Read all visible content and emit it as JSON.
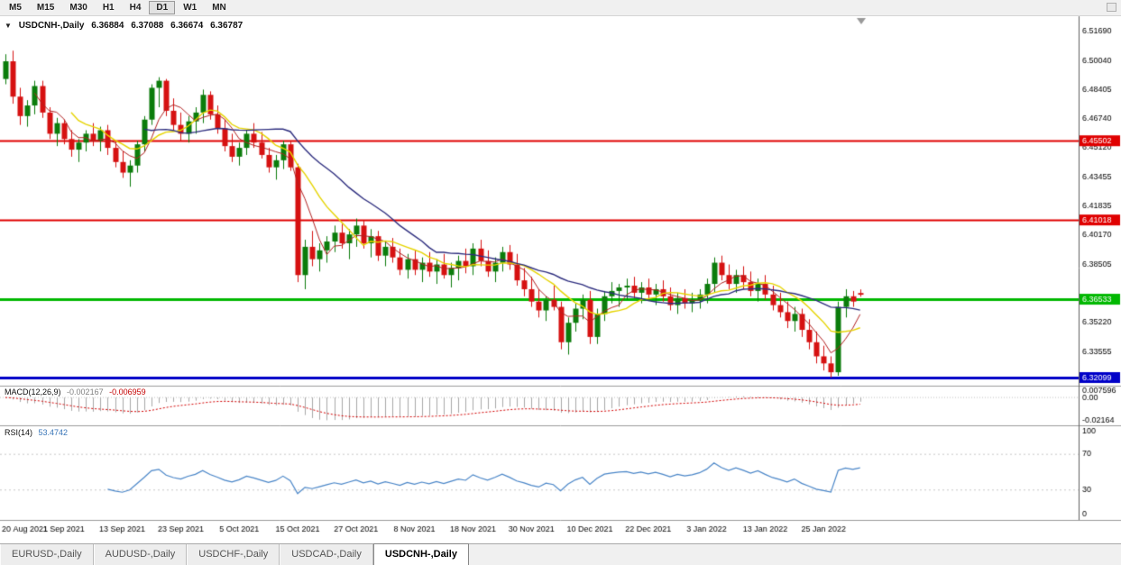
{
  "toolbar": {
    "timeframes": [
      "M5",
      "M15",
      "M30",
      "H1",
      "H4",
      "D1",
      "W1",
      "MN"
    ],
    "active_timeframe": "D1"
  },
  "header": {
    "symbol": "USDCNH-,Daily",
    "open": "6.36884",
    "high": "6.37088",
    "low": "6.36674",
    "close": "6.36787"
  },
  "chart_data": {
    "type": "candlestick",
    "title": "USDCNH-,Daily",
    "up_color": "#0b7c0b",
    "down_color": "#d61111",
    "ylim": [
      6.3164,
      6.5245
    ],
    "y_axis_ticks": [
      {
        "label": "6.51690",
        "price": 6.5169
      },
      {
        "label": "6.50040",
        "price": 6.5004
      },
      {
        "label": "6.48405",
        "price": 6.48405
      },
      {
        "label": "6.46740",
        "price": 6.4674
      },
      {
        "label": "6.45120",
        "price": 6.4512
      },
      {
        "label": "6.43455",
        "price": 6.43455
      },
      {
        "label": "6.41835",
        "price": 6.41835
      },
      {
        "label": "6.40170",
        "price": 6.4017
      },
      {
        "label": "6.38505",
        "price": 6.38505
      },
      {
        "label": "6.35220",
        "price": 6.3522
      },
      {
        "label": "6.33555",
        "price": 6.33555
      }
    ],
    "horizontal_lines": [
      {
        "label": "6.45502",
        "price": 6.45502,
        "color": "#e00000",
        "width": 2
      },
      {
        "label": "6.41018",
        "price": 6.41018,
        "color": "#e00000",
        "width": 2
      },
      {
        "label": "6.36533",
        "price": 6.36533,
        "color": "#00b800",
        "width": 3
      },
      {
        "label": "6.32099",
        "price": 6.32099,
        "color": "#0000c8",
        "width": 3
      }
    ],
    "moving_averages": [
      {
        "period": 5,
        "color": "#b22222",
        "width": 1
      },
      {
        "period": 10,
        "color": "#e6d400",
        "width": 1.4
      },
      {
        "period": 20,
        "color": "#2e2e7f",
        "width": 1.4
      }
    ],
    "x_tick_labels": [
      "20 Aug 2021",
      "1 Sep 2021",
      "13 Sep 2021",
      "23 Sep 2021",
      "5 Oct 2021",
      "15 Oct 2021",
      "27 Oct 2021",
      "8 Nov 2021",
      "18 Nov 2021",
      "30 Nov 2021",
      "10 Dec 2021",
      "22 Dec 2021",
      "3 Jan 2022",
      "13 Jan 2022",
      "25 Jan 2022"
    ],
    "x_tick_every": 8,
    "ohlc": [
      [
        6.49,
        6.504,
        6.487,
        6.5
      ],
      [
        6.5,
        6.506,
        6.476,
        6.48
      ],
      [
        6.48,
        6.485,
        6.464,
        6.469
      ],
      [
        6.469,
        6.478,
        6.463,
        6.475
      ],
      [
        6.475,
        6.489,
        6.47,
        6.486
      ],
      [
        6.486,
        6.489,
        6.468,
        6.471
      ],
      [
        6.471,
        6.474,
        6.456,
        6.459
      ],
      [
        6.459,
        6.468,
        6.452,
        6.465
      ],
      [
        6.465,
        6.467,
        6.453,
        6.456
      ],
      [
        6.456,
        6.461,
        6.446,
        6.45
      ],
      [
        6.45,
        6.456,
        6.443,
        6.454
      ],
      [
        6.454,
        6.461,
        6.449,
        6.459
      ],
      [
        6.459,
        6.465,
        6.452,
        6.455
      ],
      [
        6.455,
        6.463,
        6.449,
        6.461
      ],
      [
        6.461,
        6.464,
        6.447,
        6.451
      ],
      [
        6.451,
        6.455,
        6.44,
        6.443
      ],
      [
        6.443,
        6.449,
        6.434,
        6.437
      ],
      [
        6.437,
        6.444,
        6.429,
        6.441
      ],
      [
        6.441,
        6.455,
        6.437,
        6.453
      ],
      [
        6.453,
        6.469,
        6.449,
        6.467
      ],
      [
        6.467,
        6.487,
        6.464,
        6.485
      ],
      [
        6.485,
        6.491,
        6.474,
        6.489
      ],
      [
        6.489,
        6.49,
        6.469,
        6.472
      ],
      [
        6.472,
        6.479,
        6.461,
        6.464
      ],
      [
        6.464,
        6.471,
        6.455,
        6.459
      ],
      [
        6.459,
        6.469,
        6.454,
        6.466
      ],
      [
        6.466,
        6.474,
        6.459,
        6.471
      ],
      [
        6.471,
        6.484,
        6.465,
        6.481
      ],
      [
        6.481,
        6.483,
        6.467,
        6.47
      ],
      [
        6.47,
        6.475,
        6.459,
        6.462
      ],
      [
        6.462,
        6.467,
        6.449,
        6.452
      ],
      [
        6.452,
        6.459,
        6.443,
        6.446
      ],
      [
        6.446,
        6.454,
        6.441,
        6.451
      ],
      [
        6.451,
        6.461,
        6.447,
        6.459
      ],
      [
        6.459,
        6.465,
        6.451,
        6.454
      ],
      [
        6.454,
        6.46,
        6.445,
        6.447
      ],
      [
        6.447,
        6.451,
        6.437,
        6.44
      ],
      [
        6.44,
        6.447,
        6.433,
        6.444
      ],
      [
        6.444,
        6.455,
        6.439,
        6.453
      ],
      [
        6.453,
        6.455,
        6.438,
        6.44
      ],
      [
        6.44,
        6.442,
        6.375,
        6.379
      ],
      [
        6.379,
        6.399,
        6.371,
        6.395
      ],
      [
        6.395,
        6.404,
        6.384,
        6.388
      ],
      [
        6.388,
        6.397,
        6.381,
        6.393
      ],
      [
        6.393,
        6.401,
        6.386,
        6.398
      ],
      [
        6.398,
        6.407,
        6.392,
        6.403
      ],
      [
        6.403,
        6.408,
        6.394,
        6.397
      ],
      [
        6.397,
        6.405,
        6.388,
        6.402
      ],
      [
        6.402,
        6.411,
        6.395,
        6.407
      ],
      [
        6.407,
        6.41,
        6.394,
        6.397
      ],
      [
        6.397,
        6.405,
        6.389,
        6.401
      ],
      [
        6.401,
        6.404,
        6.387,
        6.39
      ],
      [
        6.39,
        6.398,
        6.384,
        6.395
      ],
      [
        6.395,
        6.4,
        6.386,
        6.389
      ],
      [
        6.389,
        6.394,
        6.379,
        6.382
      ],
      [
        6.382,
        6.391,
        6.377,
        6.388
      ],
      [
        6.388,
        6.393,
        6.379,
        6.382
      ],
      [
        6.382,
        6.389,
        6.375,
        6.386
      ],
      [
        6.386,
        6.392,
        6.378,
        6.381
      ],
      [
        6.381,
        6.388,
        6.374,
        6.385
      ],
      [
        6.385,
        6.391,
        6.377,
        6.379
      ],
      [
        6.379,
        6.386,
        6.372,
        6.383
      ],
      [
        6.383,
        6.39,
        6.376,
        6.387
      ],
      [
        6.387,
        6.394,
        6.38,
        6.384
      ],
      [
        6.384,
        6.397,
        6.379,
        6.394
      ],
      [
        6.394,
        6.399,
        6.384,
        6.387
      ],
      [
        6.387,
        6.393,
        6.378,
        6.381
      ],
      [
        6.381,
        6.389,
        6.375,
        6.386
      ],
      [
        6.386,
        6.395,
        6.381,
        6.392
      ],
      [
        6.392,
        6.396,
        6.382,
        6.385
      ],
      [
        6.385,
        6.391,
        6.373,
        6.376
      ],
      [
        6.376,
        6.383,
        6.367,
        6.371
      ],
      [
        6.371,
        6.378,
        6.361,
        6.364
      ],
      [
        6.364,
        6.371,
        6.355,
        6.359
      ],
      [
        6.359,
        6.367,
        6.353,
        6.365
      ],
      [
        6.365,
        6.373,
        6.359,
        6.361
      ],
      [
        6.361,
        6.364,
        6.337,
        6.341
      ],
      [
        6.341,
        6.355,
        6.334,
        6.352
      ],
      [
        6.352,
        6.363,
        6.347,
        6.36
      ],
      [
        6.36,
        6.368,
        6.354,
        6.365
      ],
      [
        6.365,
        6.37,
        6.34,
        6.344
      ],
      [
        6.344,
        6.36,
        6.34,
        6.357
      ],
      [
        6.357,
        6.37,
        6.353,
        6.367
      ],
      [
        6.367,
        6.375,
        6.363,
        6.37
      ],
      [
        6.37,
        6.374,
        6.361,
        6.372
      ],
      [
        6.372,
        6.377,
        6.365,
        6.373
      ],
      [
        6.373,
        6.378,
        6.366,
        6.369
      ],
      [
        6.369,
        6.375,
        6.363,
        6.372
      ],
      [
        6.372,
        6.377,
        6.365,
        6.368
      ],
      [
        6.368,
        6.374,
        6.362,
        6.371
      ],
      [
        6.371,
        6.376,
        6.364,
        6.367
      ],
      [
        6.367,
        6.372,
        6.359,
        6.362
      ],
      [
        6.362,
        6.369,
        6.357,
        6.366
      ],
      [
        6.366,
        6.371,
        6.36,
        6.363
      ],
      [
        6.363,
        6.369,
        6.358,
        6.365
      ],
      [
        6.365,
        6.371,
        6.36,
        6.368
      ],
      [
        6.368,
        6.377,
        6.363,
        6.374
      ],
      [
        6.374,
        6.389,
        6.369,
        6.386
      ],
      [
        6.386,
        6.39,
        6.376,
        6.379
      ],
      [
        6.379,
        6.385,
        6.371,
        6.374
      ],
      [
        6.374,
        6.382,
        6.369,
        6.379
      ],
      [
        6.379,
        6.384,
        6.371,
        6.375
      ],
      [
        6.375,
        6.381,
        6.367,
        6.37
      ],
      [
        6.37,
        6.377,
        6.364,
        6.374
      ],
      [
        6.374,
        6.379,
        6.365,
        6.368
      ],
      [
        6.368,
        6.373,
        6.359,
        6.362
      ],
      [
        6.362,
        6.369,
        6.355,
        6.358
      ],
      [
        6.358,
        6.364,
        6.349,
        6.353
      ],
      [
        6.353,
        6.361,
        6.347,
        6.357
      ],
      [
        6.357,
        6.36,
        6.344,
        6.348
      ],
      [
        6.348,
        6.354,
        6.337,
        6.341
      ],
      [
        6.341,
        6.347,
        6.329,
        6.333
      ],
      [
        6.333,
        6.339,
        6.325,
        6.329
      ],
      [
        6.329,
        6.333,
        6.321,
        6.324
      ],
      [
        6.324,
        6.364,
        6.322,
        6.361
      ],
      [
        6.361,
        6.371,
        6.355,
        6.367
      ],
      [
        6.367,
        6.37,
        6.361,
        6.364
      ],
      [
        6.36884,
        6.37088,
        6.36674,
        6.36787
      ]
    ]
  },
  "indicators": {
    "macd": {
      "label": "MACD(12,26,9)",
      "value_main": "-0.002167",
      "value_signal": "-0.006959",
      "params": [
        12,
        26,
        9
      ],
      "scale_max_label": "0.007596",
      "scale_zero_label": "0.00",
      "scale_min_label": "-0.02164",
      "scale_max": 0.007596,
      "scale_min": -0.02164,
      "histogram_color": "#a8a8a8",
      "signal_color": "#d40000"
    },
    "rsi": {
      "label": "RSI(14)",
      "value": "53.4742",
      "period": 14,
      "levels": [
        70,
        30
      ],
      "scale_labels": [
        "100",
        "70",
        "30",
        "0"
      ],
      "line_color": "#4a86c8"
    }
  },
  "tabs": {
    "items": [
      "EURUSD-,Daily",
      "AUDUSD-,Daily",
      "USDCHF-,Daily",
      "USDCAD-,Daily",
      "USDCNH-,Daily"
    ],
    "active_index": 4
  }
}
